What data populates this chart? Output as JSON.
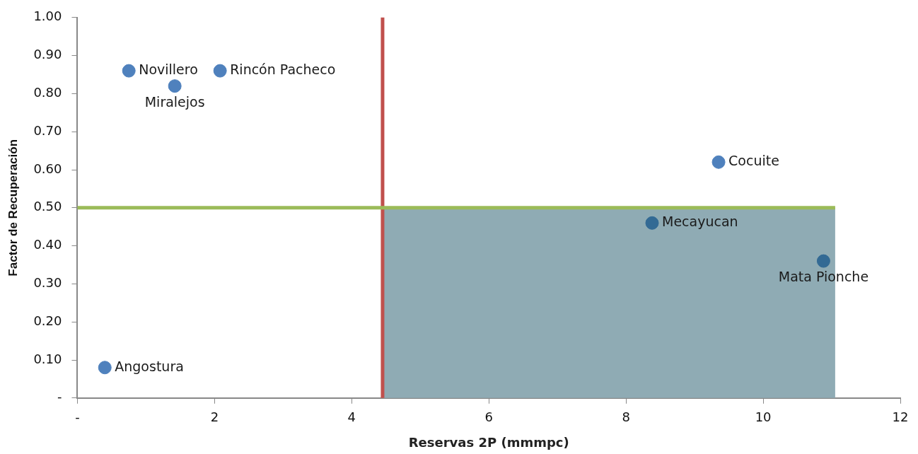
{
  "chart_data": {
    "type": "scatter",
    "xlabel": "Reservas 2P (mmmpc)",
    "ylabel": "Factor de Recuperación",
    "x": [
      0.75,
      1.42,
      2.08,
      0.4,
      9.35,
      8.38,
      10.88
    ],
    "values": [
      0.86,
      0.82,
      0.86,
      0.08,
      0.62,
      0.46,
      0.36
    ],
    "value_labels": [
      "Novillero",
      "Miralejos",
      "Rincón Pacheco",
      "Angostura",
      "Cocuite",
      "Mecayucan",
      "Mata Pionche"
    ],
    "colors": [
      "#4f81bd",
      "#4f81bd",
      "#4f81bd",
      "#4f81bd",
      "#4f81bd",
      "#336a94",
      "#336a94"
    ],
    "marker": "circle",
    "xlim": [
      0,
      12
    ],
    "xticks": [
      {
        "value": 0,
        "label": "-"
      },
      2,
      4,
      6,
      8,
      10,
      12
    ],
    "ylim": [
      0,
      1
    ],
    "yticks": [
      {
        "value": 0,
        "label": "-"
      },
      {
        "value": 0.1,
        "label": "0.10"
      },
      {
        "value": 0.2,
        "label": "0.20"
      },
      {
        "value": 0.3,
        "label": "0.30"
      },
      {
        "value": 0.4,
        "label": "0.40"
      },
      {
        "value": 0.5,
        "label": "0.50"
      },
      {
        "value": 0.6,
        "label": "0.60"
      },
      {
        "value": 0.7,
        "label": "0.70"
      },
      {
        "value": 0.8,
        "label": "0.80"
      },
      {
        "value": 0.9,
        "label": "0.90"
      },
      {
        "value": 1,
        "label": "1.00"
      }
    ],
    "ref_lines": [
      {
        "axis": "x",
        "value": 4.45,
        "color": "#c0504d"
      },
      {
        "axis": "y",
        "value": 0.5,
        "color": "#9bbb59"
      }
    ],
    "bands": [
      {
        "axis": "x",
        "from": 4.45,
        "to": 11.05,
        "color": "#8fabb4"
      }
    ],
    "grid": false,
    "legend": false
  }
}
